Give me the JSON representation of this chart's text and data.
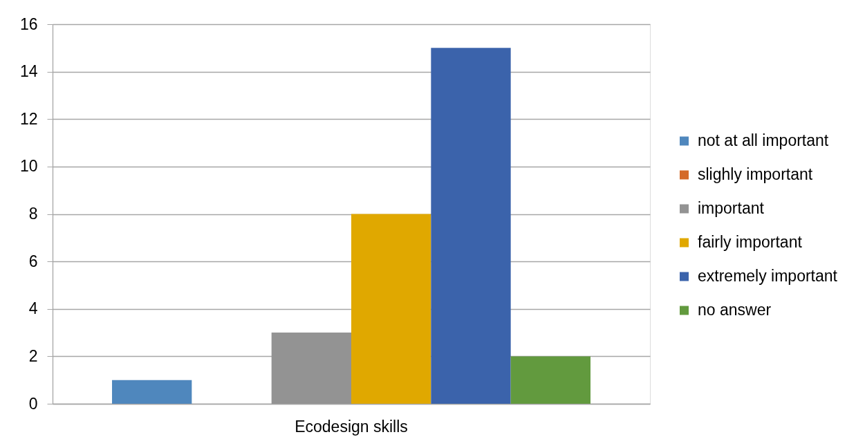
{
  "chart_data": {
    "type": "bar",
    "categories": [
      "Ecodesign skills"
    ],
    "series": [
      {
        "name": "not at all important",
        "color": "#4f87bd",
        "values": [
          1
        ]
      },
      {
        "name": "slighly important",
        "color": "#d46a2a",
        "values": [
          0
        ]
      },
      {
        "name": "important",
        "color": "#939393",
        "values": [
          3
        ]
      },
      {
        "name": "fairly important",
        "color": "#e0a800",
        "values": [
          8
        ]
      },
      {
        "name": "extremely important",
        "color": "#3b63ab",
        "values": [
          15
        ]
      },
      {
        "name": "no answer",
        "color": "#629a3e",
        "values": [
          2
        ]
      }
    ],
    "ylim": [
      0,
      16
    ],
    "yticks": [
      0,
      2,
      4,
      6,
      8,
      10,
      12,
      14,
      16
    ],
    "grid": "y",
    "legend": "right"
  }
}
